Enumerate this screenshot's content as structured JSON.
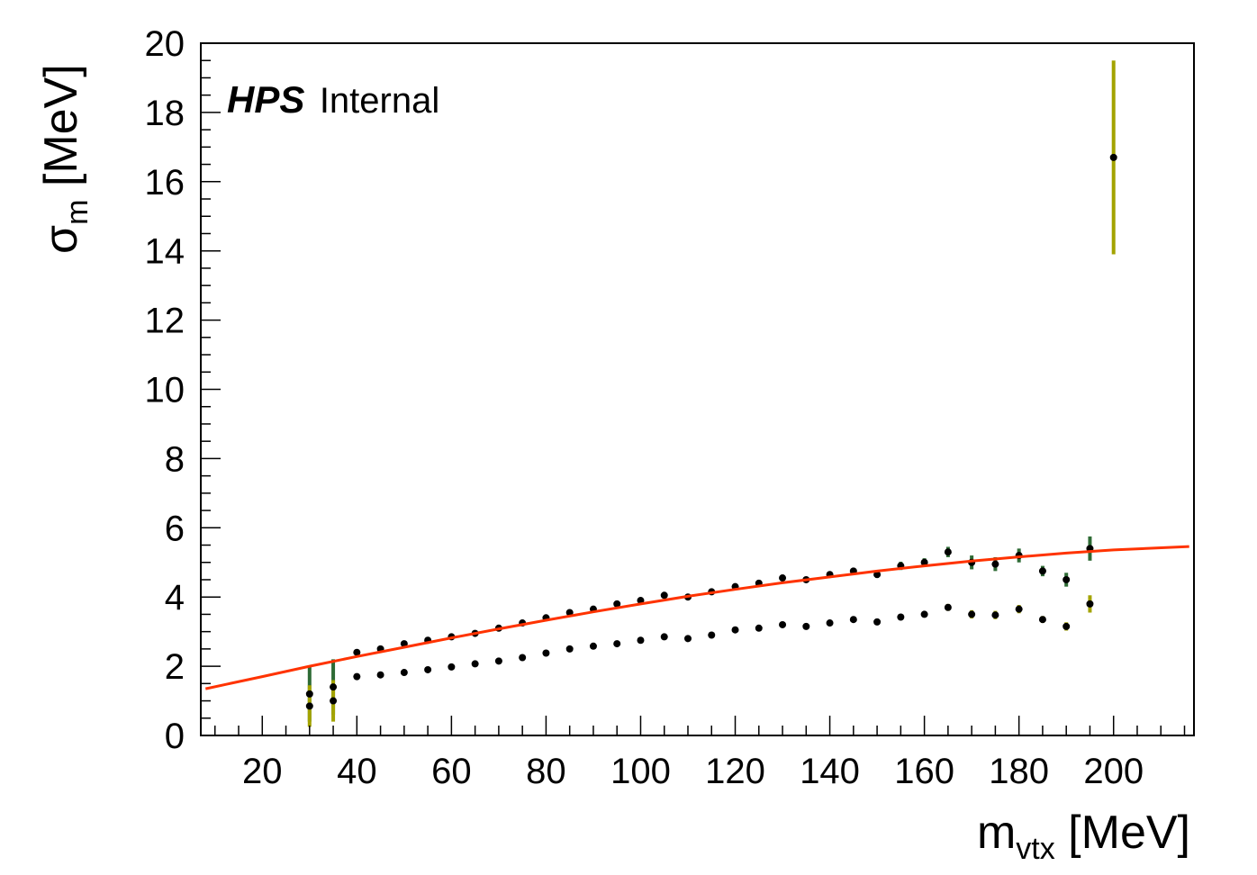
{
  "chart_data": {
    "type": "scatter",
    "title": "",
    "annotation": {
      "bold": "HPS",
      "plain": "Internal"
    },
    "xlabel": {
      "main": "m",
      "sub": "vtx",
      "unit": " [MeV]"
    },
    "ylabel": {
      "main": "σ",
      "sub": "m",
      "unit": " [MeV]"
    },
    "xlim": [
      7,
      217
    ],
    "ylim": [
      0,
      20
    ],
    "x_ticks": [
      20,
      40,
      60,
      80,
      100,
      120,
      140,
      160,
      180,
      200
    ],
    "y_ticks": [
      0,
      2,
      4,
      6,
      8,
      10,
      12,
      14,
      16,
      18,
      20
    ],
    "grid": false,
    "colors": {
      "upper_err": "#2e6b35",
      "lower_err": "#a3a300",
      "marker": "#000000",
      "fit": "#ff3300"
    },
    "series": [
      {
        "points": [
          {
            "x": 30,
            "y": 1.2,
            "err": 0.8
          },
          {
            "x": 35,
            "y": 1.4,
            "err": 0.8
          },
          {
            "x": 40,
            "y": 2.4,
            "err": 0.05
          },
          {
            "x": 45,
            "y": 2.5,
            "err": 0.05
          },
          {
            "x": 50,
            "y": 2.65,
            "err": 0.05
          },
          {
            "x": 55,
            "y": 2.75,
            "err": 0.05
          },
          {
            "x": 60,
            "y": 2.85,
            "err": 0.05
          },
          {
            "x": 65,
            "y": 2.95,
            "err": 0.05
          },
          {
            "x": 70,
            "y": 3.1,
            "err": 0.05
          },
          {
            "x": 75,
            "y": 3.25,
            "err": 0.05
          },
          {
            "x": 80,
            "y": 3.4,
            "err": 0.05
          },
          {
            "x": 85,
            "y": 3.55,
            "err": 0.05
          },
          {
            "x": 90,
            "y": 3.65,
            "err": 0.05
          },
          {
            "x": 95,
            "y": 3.8,
            "err": 0.05
          },
          {
            "x": 100,
            "y": 3.9,
            "err": 0.05
          },
          {
            "x": 105,
            "y": 4.05,
            "err": 0.05
          },
          {
            "x": 110,
            "y": 4.0,
            "err": 0.05
          },
          {
            "x": 115,
            "y": 4.15,
            "err": 0.05
          },
          {
            "x": 120,
            "y": 4.3,
            "err": 0.05
          },
          {
            "x": 125,
            "y": 4.4,
            "err": 0.05
          },
          {
            "x": 130,
            "y": 4.55,
            "err": 0.05
          },
          {
            "x": 135,
            "y": 4.5,
            "err": 0.05
          },
          {
            "x": 140,
            "y": 4.65,
            "err": 0.05
          },
          {
            "x": 145,
            "y": 4.75,
            "err": 0.08
          },
          {
            "x": 150,
            "y": 4.65,
            "err": 0.1
          },
          {
            "x": 155,
            "y": 4.9,
            "err": 0.12
          },
          {
            "x": 160,
            "y": 5.0,
            "err": 0.12
          },
          {
            "x": 165,
            "y": 5.3,
            "err": 0.15
          },
          {
            "x": 170,
            "y": 5.0,
            "err": 0.2
          },
          {
            "x": 175,
            "y": 4.95,
            "err": 0.2
          },
          {
            "x": 180,
            "y": 5.2,
            "err": 0.2
          },
          {
            "x": 185,
            "y": 4.75,
            "err": 0.15
          },
          {
            "x": 190,
            "y": 4.5,
            "err": 0.2
          },
          {
            "x": 195,
            "y": 5.4,
            "err": 0.35
          }
        ]
      },
      {
        "points": [
          {
            "x": 30,
            "y": 0.85,
            "err": 0.6
          },
          {
            "x": 35,
            "y": 1.0,
            "err": 0.6
          },
          {
            "x": 40,
            "y": 1.7,
            "err": 0.05
          },
          {
            "x": 45,
            "y": 1.75,
            "err": 0.05
          },
          {
            "x": 50,
            "y": 1.82,
            "err": 0.05
          },
          {
            "x": 55,
            "y": 1.9,
            "err": 0.05
          },
          {
            "x": 60,
            "y": 1.98,
            "err": 0.05
          },
          {
            "x": 65,
            "y": 2.07,
            "err": 0.05
          },
          {
            "x": 70,
            "y": 2.15,
            "err": 0.05
          },
          {
            "x": 75,
            "y": 2.25,
            "err": 0.05
          },
          {
            "x": 80,
            "y": 2.38,
            "err": 0.05
          },
          {
            "x": 85,
            "y": 2.5,
            "err": 0.05
          },
          {
            "x": 90,
            "y": 2.58,
            "err": 0.05
          },
          {
            "x": 95,
            "y": 2.65,
            "err": 0.05
          },
          {
            "x": 100,
            "y": 2.75,
            "err": 0.05
          },
          {
            "x": 105,
            "y": 2.85,
            "err": 0.05
          },
          {
            "x": 110,
            "y": 2.8,
            "err": 0.05
          },
          {
            "x": 115,
            "y": 2.9,
            "err": 0.05
          },
          {
            "x": 120,
            "y": 3.05,
            "err": 0.05
          },
          {
            "x": 125,
            "y": 3.1,
            "err": 0.05
          },
          {
            "x": 130,
            "y": 3.2,
            "err": 0.05
          },
          {
            "x": 135,
            "y": 3.15,
            "err": 0.05
          },
          {
            "x": 140,
            "y": 3.25,
            "err": 0.05
          },
          {
            "x": 145,
            "y": 3.35,
            "err": 0.05
          },
          {
            "x": 150,
            "y": 3.28,
            "err": 0.08
          },
          {
            "x": 155,
            "y": 3.42,
            "err": 0.08
          },
          {
            "x": 160,
            "y": 3.5,
            "err": 0.08
          },
          {
            "x": 165,
            "y": 3.7,
            "err": 0.1
          },
          {
            "x": 170,
            "y": 3.5,
            "err": 0.12
          },
          {
            "x": 175,
            "y": 3.48,
            "err": 0.12
          },
          {
            "x": 180,
            "y": 3.65,
            "err": 0.12
          },
          {
            "x": 185,
            "y": 3.35,
            "err": 0.1
          },
          {
            "x": 190,
            "y": 3.15,
            "err": 0.12
          },
          {
            "x": 195,
            "y": 3.8,
            "err": 0.25
          },
          {
            "x": 200,
            "y": 16.7,
            "err": 2.8
          }
        ]
      }
    ],
    "fit_curve": {
      "x": [
        8,
        20,
        30,
        40,
        50,
        60,
        70,
        80,
        90,
        100,
        110,
        120,
        130,
        140,
        150,
        160,
        170,
        180,
        190,
        200,
        216
      ],
      "y": [
        1.35,
        1.7,
        2.0,
        2.28,
        2.55,
        2.82,
        3.08,
        3.33,
        3.57,
        3.8,
        4.02,
        4.22,
        4.41,
        4.58,
        4.75,
        4.9,
        5.04,
        5.16,
        5.27,
        5.36,
        5.46
      ]
    }
  }
}
